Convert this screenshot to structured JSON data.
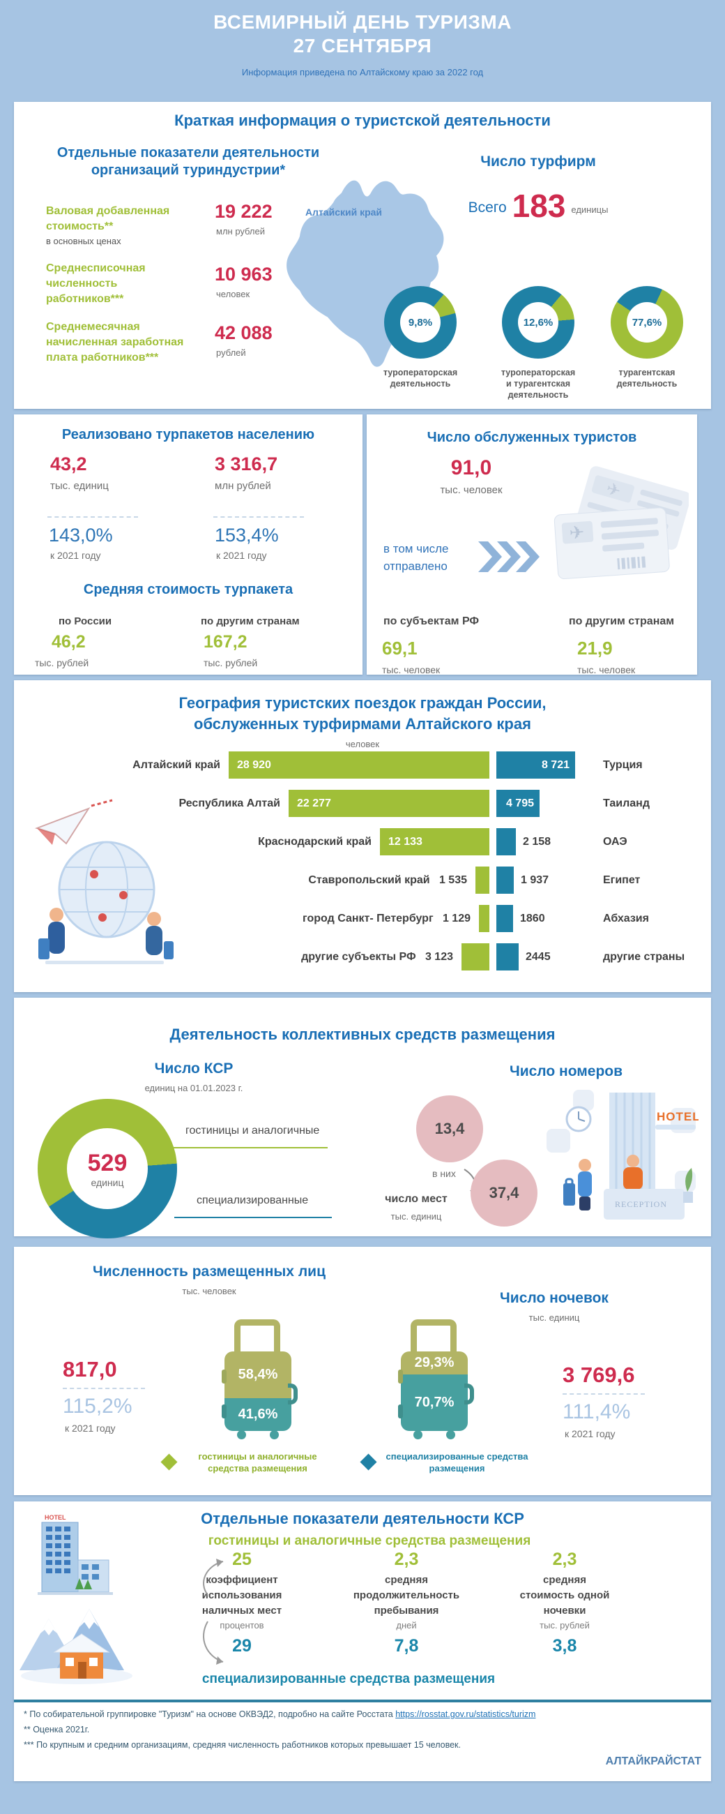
{
  "header": {
    "title1": "ВСЕМИРНЫЙ ДЕНЬ ТУРИЗМА",
    "title2": "27 СЕНТЯБРЯ",
    "subtitle": "Информация приведена по Алтайскому  краю за 2022 год"
  },
  "s1": {
    "title": "Краткая информация о туристской деятельности",
    "ind_title_l1": "Отдельные показатели деятельности",
    "ind_title_l2": "организаций  туриндустрии*",
    "indicators": [
      {
        "lines": [
          "Валовая добавленная",
          "стоимость**"
        ],
        "note": "в основных ценах",
        "value": "19 222",
        "unit": "млн рублей"
      },
      {
        "lines": [
          "Среднесписочная",
          "численность",
          "работников***"
        ],
        "note": "",
        "value": "10 963",
        "unit": "человек"
      },
      {
        "lines": [
          "Среднемесячная",
          "начисленная заработная",
          "плата работников***"
        ],
        "note": "",
        "value": "42 088",
        "unit": "рублей"
      }
    ],
    "map_label": "Алтайский край",
    "firms_title": "Число турфирм",
    "firms_all": "Всего",
    "firms_value": "183",
    "firms_unit": "единицы",
    "donuts": [
      {
        "pct": "9,8%",
        "value": 9.8,
        "lines": [
          "туроператорская",
          "деятельность"
        ]
      },
      {
        "pct": "12,6%",
        "value": 12.6,
        "lines": [
          "туроператорская",
          "и турагентская",
          "деятельность"
        ]
      },
      {
        "pct": "77,6%",
        "value": 77.6,
        "lines": [
          "турагентская",
          "деятельность"
        ]
      }
    ]
  },
  "s2l": {
    "title": "Реализовано турпакетов населению",
    "v1": "43,2",
    "u1": "тыс. единиц",
    "g1": "143,0%",
    "gn1": "к 2021 году",
    "v2": "3 316,7",
    "u2": "млн  рублей",
    "g2": "153,4%",
    "gn2": "к 2021 году",
    "avg_title": "Средняя стоимость турпакета",
    "a1l": "по России",
    "a1v": "46,2",
    "a1u": "тыс. рублей",
    "a2l": "по другим странам",
    "a2v": "167,2",
    "a2u": "тыс. рублей"
  },
  "s2r": {
    "title": "Число обслуженных туристов",
    "v": "91,0",
    "u": "тыс. человек",
    "inc": "в том числе отправлено",
    "b1l": "по субъектам РФ",
    "b1v": "69,1",
    "b1u": "тыс. человек",
    "b2l": "по другим странам",
    "b2v": "21,9",
    "b2u": "тыс. человек"
  },
  "s3": {
    "t1": "География туристских поездок  граждан России,",
    "t2": "обслуженных турфирмами Алтайского края",
    "unit": "человек",
    "rows": [
      {
        "left_label": "Алтайский  край",
        "left_value": "28 920",
        "left_num": 28920,
        "right_value": "8 721",
        "right_num": 8721,
        "right_label": "Турция"
      },
      {
        "left_label": "Республика Алтай",
        "left_value": "22 277",
        "left_num": 22277,
        "right_value": "4 795",
        "right_num": 4795,
        "right_label": "Таиланд"
      },
      {
        "left_label": "Краснодарский край",
        "left_value": "12 133",
        "left_num": 12133,
        "right_value": "2 158",
        "right_num": 2158,
        "right_label": "ОАЭ"
      },
      {
        "left_label": "Ставропольский  край",
        "left_value": "1 535",
        "left_num": 1535,
        "right_value": "1 937",
        "right_num": 1937,
        "right_label": "Египет"
      },
      {
        "left_label": "город Санкт- Петербург",
        "left_value": "1 129",
        "left_num": 1129,
        "right_value": "1860",
        "right_num": 1860,
        "right_label": "Абхазия"
      },
      {
        "left_label": "другие субъекты РФ",
        "left_value": "3 123",
        "left_num": 3123,
        "right_value": "2445",
        "right_num": 2445,
        "right_label": "другие страны"
      }
    ]
  },
  "s4": {
    "title": "Деятельность  коллективных средств размещения",
    "ksr": {
      "title": "Число КСР",
      "unit": "единиц  на 01.01.2023 г.",
      "value": "529",
      "vunit": "единиц",
      "leg1": "гостиницы и аналогичные",
      "leg2": "специализированные",
      "green_share": 58
    },
    "rooms": {
      "title": "Число номеров",
      "c1": "13,4",
      "arrow_label": "в них",
      "places": "число мест",
      "punit": "тыс. единиц",
      "c2": "37,4",
      "hotel_sign": "HOTEL",
      "reception_sign": "RECEPTION"
    }
  },
  "s5": {
    "l": {
      "title": "Численность размещенных лиц",
      "unit": "тыс. человек",
      "value": "817,0",
      "growth": "115,2%",
      "gnote": "к 2021 году"
    },
    "r": {
      "title": "Число ночевок",
      "unit": "тыс. единиц",
      "value": "3 769,6",
      "growth": "111,4%",
      "gnote": "к 2021 году"
    },
    "sc1": {
      "top": "58,4%",
      "top_num": 58.4,
      "bottom": "41,6%",
      "bottom_num": 41.6
    },
    "sc2": {
      "top": "29,3%",
      "top_num": 29.3,
      "bottom": "70,7%",
      "bottom_num": 70.7
    },
    "leg1": "гостиницы и аналогичные средства размещения",
    "leg2": "специализированные средства размещения"
  },
  "s6": {
    "title": "Отдельные показатели деятельности КСР",
    "hot_label": "гостиницы и аналогичные средства  размещения",
    "spec_label": "специализированные средства  размещения",
    "columns": [
      {
        "hotel_value": "25",
        "label_lines": [
          "коэффициент",
          "использования",
          "наличных мест"
        ],
        "unit": "процентов",
        "spec_value": "29"
      },
      {
        "hotel_value": "2,3",
        "label_lines": [
          "средняя",
          "продолжительность",
          "пребывания"
        ],
        "unit": "дней",
        "spec_value": "7,8"
      },
      {
        "hotel_value": "2,3",
        "label_lines": [
          "средняя",
          "стоимость  одной",
          "ночевки"
        ],
        "unit": "тыс. рублей",
        "spec_value": "3,8"
      }
    ]
  },
  "footer": {
    "n1": "*   По собирательной  группировке  \"Туризм\"  на  основе ОКВЭД2, подробно  на сайте  Росстата",
    "link": "https://rosstat.gov.ru/statistics/turizm",
    "n2": "**  Оценка 2021г.",
    "n3": "*** По крупным и средним организациям,  средняя численность  работников которых превышает 15 человек.",
    "org": "АЛТАЙКРАЙСТАТ"
  },
  "chart_data": [
    {
      "type": "pie",
      "title": "Число турфирм по видам деятельности",
      "unit": "%",
      "note": "Всего 183 единицы",
      "slices": [
        {
          "label": "туроператорская деятельность",
          "value": 9.8
        },
        {
          "label": "туроператорская и турагентская деятельность",
          "value": 12.6
        },
        {
          "label": "турагентская деятельность",
          "value": 77.6
        }
      ]
    },
    {
      "type": "bar",
      "title": "География туристских поездок граждан России, обслуженных турфирмами Алтайского края",
      "unit": "человек",
      "series": [
        {
          "name": "по субъектам РФ",
          "categories": [
            "Алтайский край",
            "Республика Алтай",
            "Краснодарский край",
            "Ставропольский край",
            "город Санкт- Петербург",
            "другие субъекты РФ"
          ],
          "values": [
            28920,
            22277,
            12133,
            1535,
            1129,
            3123
          ]
        },
        {
          "name": "по другим странам",
          "categories": [
            "Турция",
            "Таиланд",
            "ОАЭ",
            "Египет",
            "Абхазия",
            "другие страны"
          ],
          "values": [
            8721,
            4795,
            2158,
            1937,
            1860,
            2445
          ]
        }
      ]
    },
    {
      "type": "pie",
      "title": "Число КСР, единиц на 01.01.2023 г.",
      "total": 529,
      "slices": [
        {
          "label": "гостиницы и аналогичные",
          "value_pct_est": 58
        },
        {
          "label": "специализированные",
          "value_pct_est": 42
        }
      ]
    },
    {
      "type": "bar",
      "title": "Структура по типам КСР",
      "unit": "%",
      "categories": [
        "гостиницы и аналогичные средства размещения",
        "специализированные средства размещения"
      ],
      "series": [
        {
          "name": "Численность размещенных лиц (817,0 тыс. человек, 115,2% к 2021 году)",
          "values": [
            58.4,
            41.6
          ]
        },
        {
          "name": "Число ночевок (3 769,6 тыс. единиц, 111,4% к 2021 году)",
          "values": [
            29.3,
            70.7
          ]
        }
      ]
    }
  ]
}
